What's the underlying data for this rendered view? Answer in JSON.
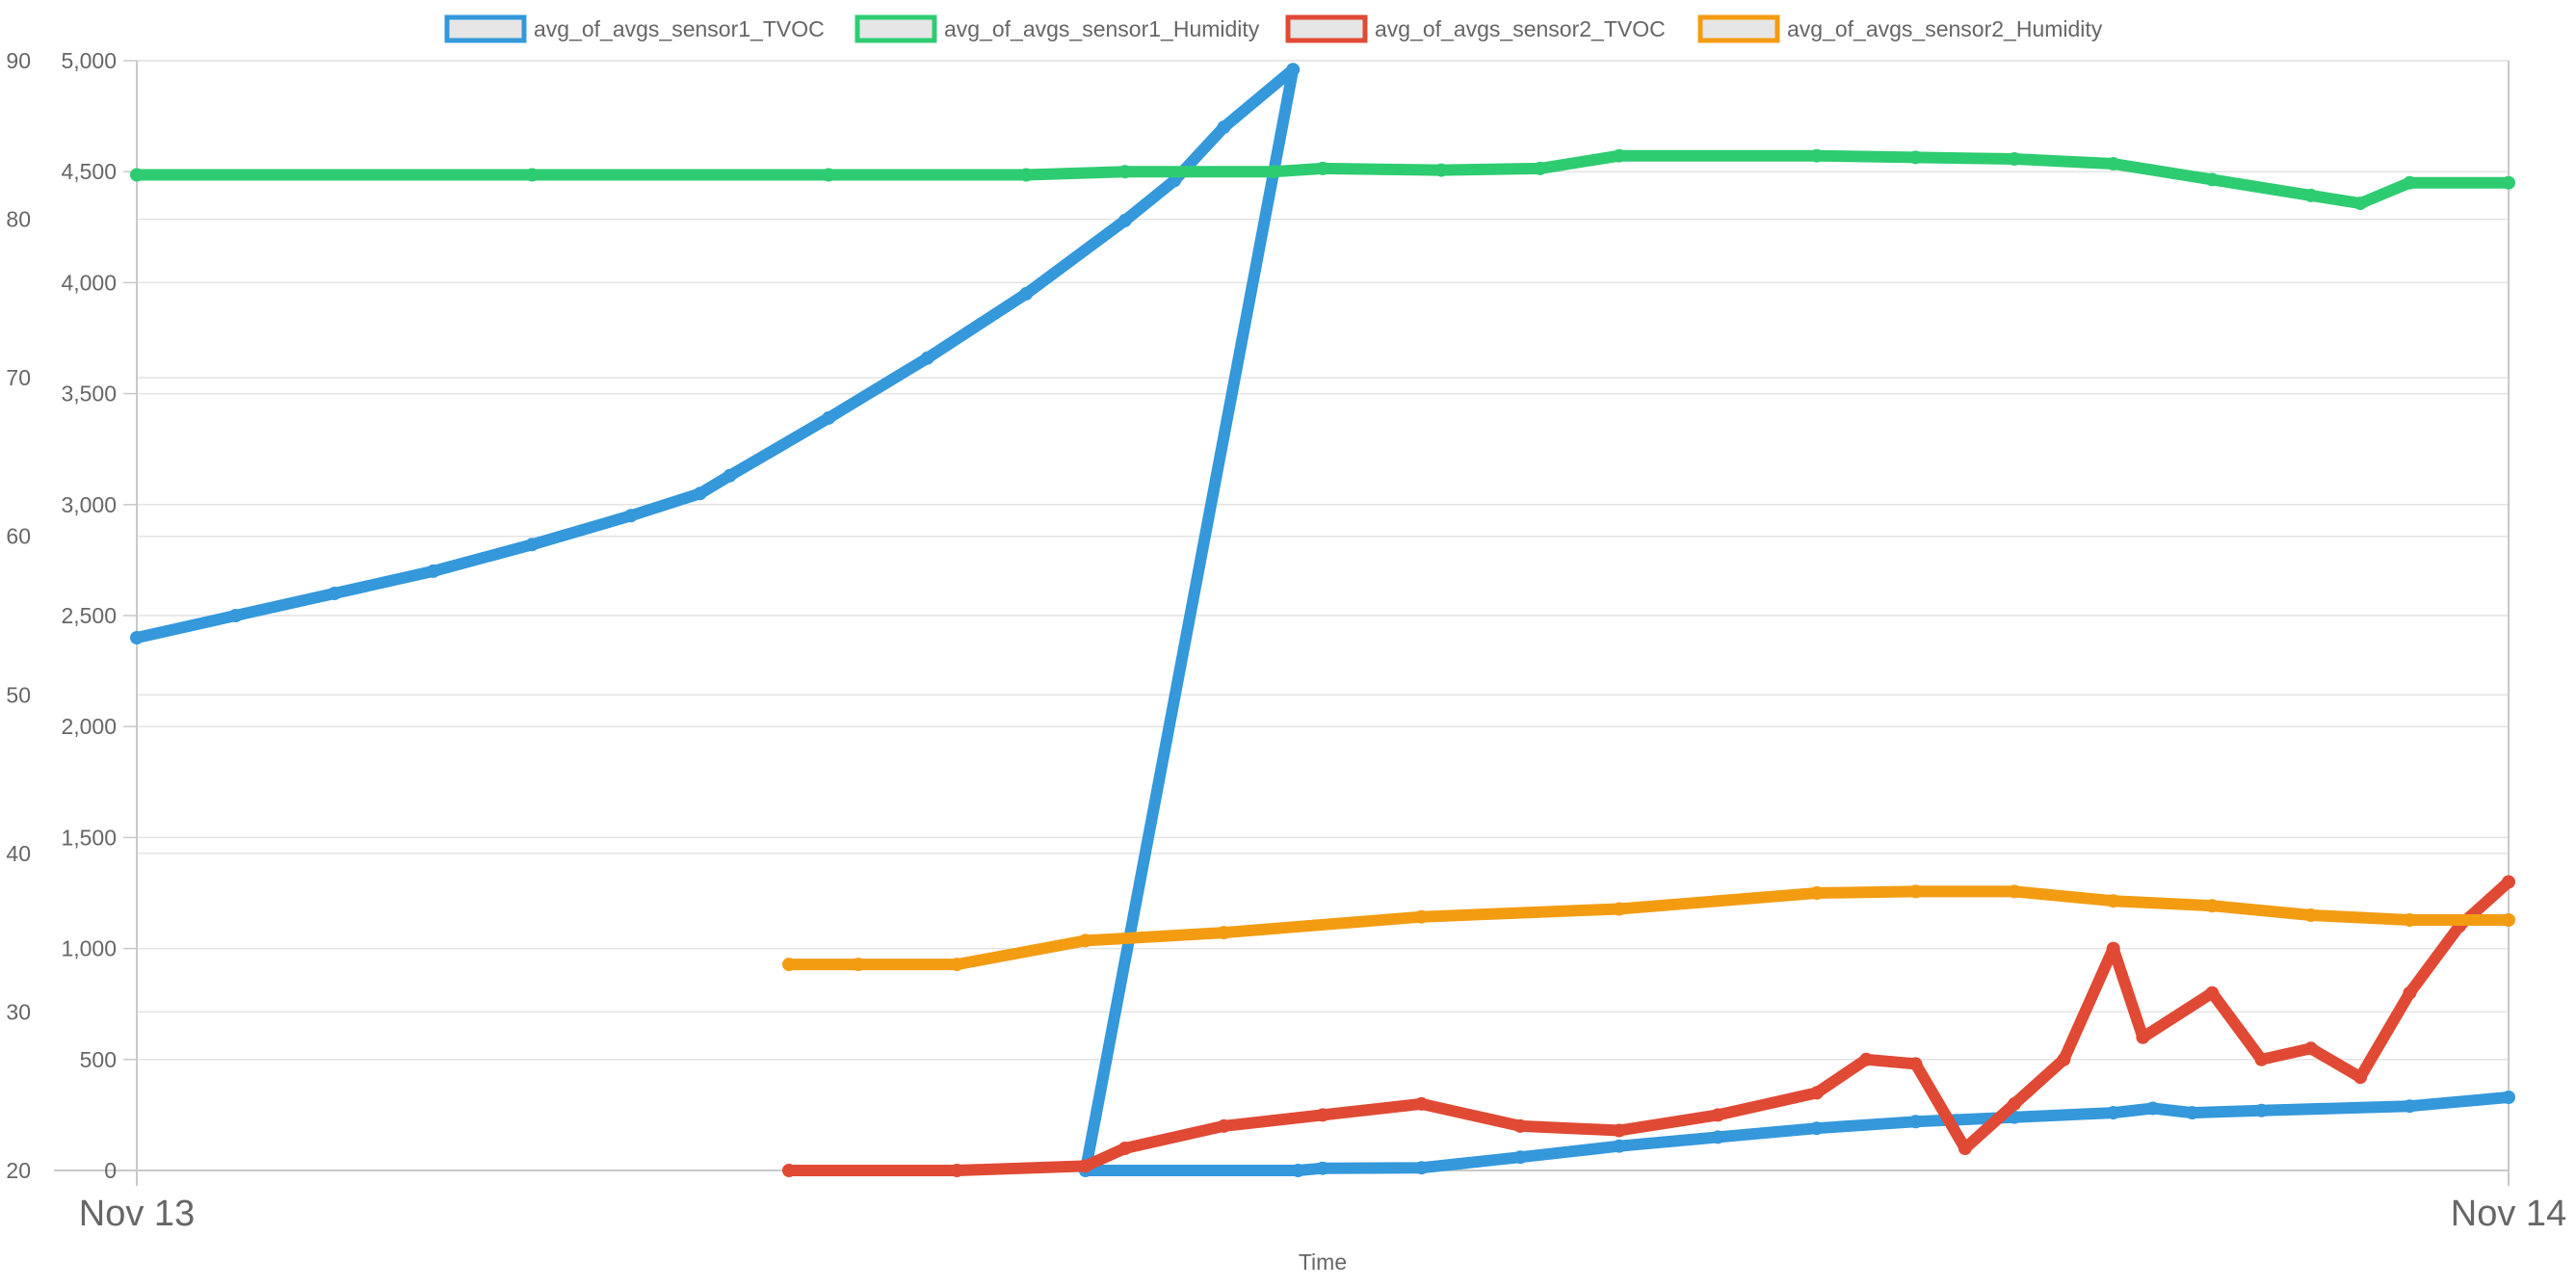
{
  "chart_data": {
    "type": "line",
    "xlabel": "Time",
    "x_ticks": [
      "Nov 13",
      "Nov 14"
    ],
    "x_range_hours": [
      0,
      24
    ],
    "y_left": {
      "ticks": [
        20,
        30,
        40,
        50,
        60,
        70,
        80,
        90
      ],
      "labels": [
        "20",
        "30",
        "40",
        "50",
        "60",
        "70",
        "80",
        "90"
      ],
      "range": [
        20,
        90
      ]
    },
    "y_right": {
      "ticks": [
        0,
        500,
        1000,
        1500,
        2000,
        2500,
        3000,
        3500,
        4000,
        4500,
        5000
      ],
      "labels": [
        "0",
        "500",
        "1,000",
        "1,500",
        "2,000",
        "2,500",
        "3,000",
        "3,500",
        "4,000",
        "4,500",
        "5,000"
      ],
      "range": [
        0,
        5000
      ]
    },
    "grid": true,
    "legend": "top-center",
    "series": [
      {
        "name": "avg_of_avgs_sensor1_TVOC",
        "color": "#3498db",
        "axis": "right",
        "points": [
          [
            0,
            2400
          ],
          [
            1,
            2500
          ],
          [
            2,
            2600
          ],
          [
            3,
            2700
          ],
          [
            4,
            2820
          ],
          [
            5,
            2950
          ],
          [
            5.7,
            3050
          ],
          [
            6,
            3130
          ],
          [
            7,
            3390
          ],
          [
            8,
            3660
          ],
          [
            9,
            3950
          ],
          [
            10,
            4280
          ],
          [
            10.5,
            4460
          ],
          [
            11,
            4700
          ],
          [
            11.7,
            4960
          ],
          [
            9.6,
            0
          ],
          [
            11.75,
            0
          ],
          [
            12,
            10
          ],
          [
            13,
            12
          ],
          [
            14,
            60
          ],
          [
            15,
            110
          ],
          [
            16,
            150
          ],
          [
            17,
            190
          ],
          [
            18,
            220
          ],
          [
            19,
            240
          ],
          [
            20,
            260
          ],
          [
            20.4,
            280
          ],
          [
            20.8,
            260
          ],
          [
            21.5,
            270
          ],
          [
            23,
            290
          ],
          [
            24,
            330
          ]
        ]
      },
      {
        "name": "avg_of_avgs_sensor1_Humidity",
        "color": "#2ecc71",
        "axis": "left",
        "points": [
          [
            0,
            82.8
          ],
          [
            4,
            82.8
          ],
          [
            7,
            82.8
          ],
          [
            9,
            82.8
          ],
          [
            10,
            83.0
          ],
          [
            11.5,
            83.0
          ],
          [
            12,
            83.2
          ],
          [
            13.2,
            83.1
          ],
          [
            14.2,
            83.2
          ],
          [
            15,
            84.0
          ],
          [
            17,
            84.0
          ],
          [
            18,
            83.9
          ],
          [
            19,
            83.8
          ],
          [
            20,
            83.5
          ],
          [
            21,
            82.5
          ],
          [
            22,
            81.5
          ],
          [
            22.5,
            81.0
          ],
          [
            23,
            82.3
          ],
          [
            24,
            82.3
          ]
        ]
      },
      {
        "name": "avg_of_avgs_sensor2_TVOC",
        "color": "#e04a35",
        "axis": "right",
        "points": [
          [
            6.6,
            0
          ],
          [
            8.3,
            0
          ],
          [
            9.6,
            20
          ],
          [
            10,
            100
          ],
          [
            11,
            200
          ],
          [
            12,
            250
          ],
          [
            13,
            300
          ],
          [
            14,
            200
          ],
          [
            15,
            180
          ],
          [
            16,
            250
          ],
          [
            17,
            350
          ],
          [
            17.5,
            500
          ],
          [
            18,
            480
          ],
          [
            18.5,
            100
          ],
          [
            19,
            300
          ],
          [
            19.5,
            500
          ],
          [
            20,
            1000
          ],
          [
            20.3,
            600
          ],
          [
            21,
            800
          ],
          [
            21.5,
            500
          ],
          [
            22,
            550
          ],
          [
            22.5,
            420
          ],
          [
            23,
            800
          ],
          [
            23.5,
            1100
          ],
          [
            24,
            1300
          ]
        ]
      },
      {
        "name": "avg_of_avgs_sensor2_Humidity",
        "color": "#f39c12",
        "axis": "left",
        "points": [
          [
            6.6,
            33.0
          ],
          [
            7.3,
            33.0
          ],
          [
            8.3,
            33.0
          ],
          [
            9.6,
            34.5
          ],
          [
            11,
            35.0
          ],
          [
            13,
            36.0
          ],
          [
            15,
            36.5
          ],
          [
            17,
            37.5
          ],
          [
            18,
            37.6
          ],
          [
            19,
            37.6
          ],
          [
            20,
            37.0
          ],
          [
            21,
            36.7
          ],
          [
            22,
            36.1
          ],
          [
            23,
            35.8
          ],
          [
            24,
            35.8
          ]
        ]
      }
    ]
  }
}
